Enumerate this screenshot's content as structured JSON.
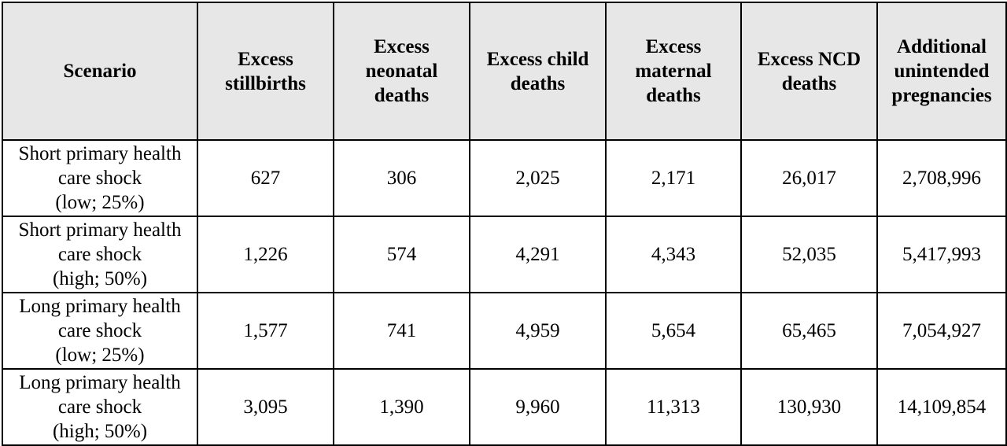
{
  "table": {
    "headers": [
      [
        "Scenario"
      ],
      [
        "Excess",
        "stillbirths"
      ],
      [
        "Excess",
        "neonatal",
        "deaths"
      ],
      [
        "Excess child",
        "deaths"
      ],
      [
        "Excess",
        "maternal",
        "deaths"
      ],
      [
        "Excess NCD",
        "deaths"
      ],
      [
        "Additional",
        "unintended",
        "pregnancies"
      ]
    ],
    "rows": [
      {
        "scenario": [
          "Short primary health",
          "care shock",
          "(low; 25%)"
        ],
        "values": [
          "627",
          "306",
          "2,025",
          "2,171",
          "26,017",
          "2,708,996"
        ]
      },
      {
        "scenario": [
          "Short primary health",
          "care shock",
          "(high; 50%)"
        ],
        "values": [
          "1,226",
          "574",
          "4,291",
          "4,343",
          "52,035",
          "5,417,993"
        ]
      },
      {
        "scenario": [
          "Long primary health",
          "care shock",
          "(low; 25%)"
        ],
        "values": [
          "1,577",
          "741",
          "4,959",
          "5,654",
          "65,465",
          "7,054,927"
        ]
      },
      {
        "scenario": [
          "Long primary health",
          "care shock",
          "(high; 50%)"
        ],
        "values": [
          "3,095",
          "1,390",
          "9,960",
          "11,313",
          "130,930",
          "14,109,854"
        ]
      }
    ]
  }
}
